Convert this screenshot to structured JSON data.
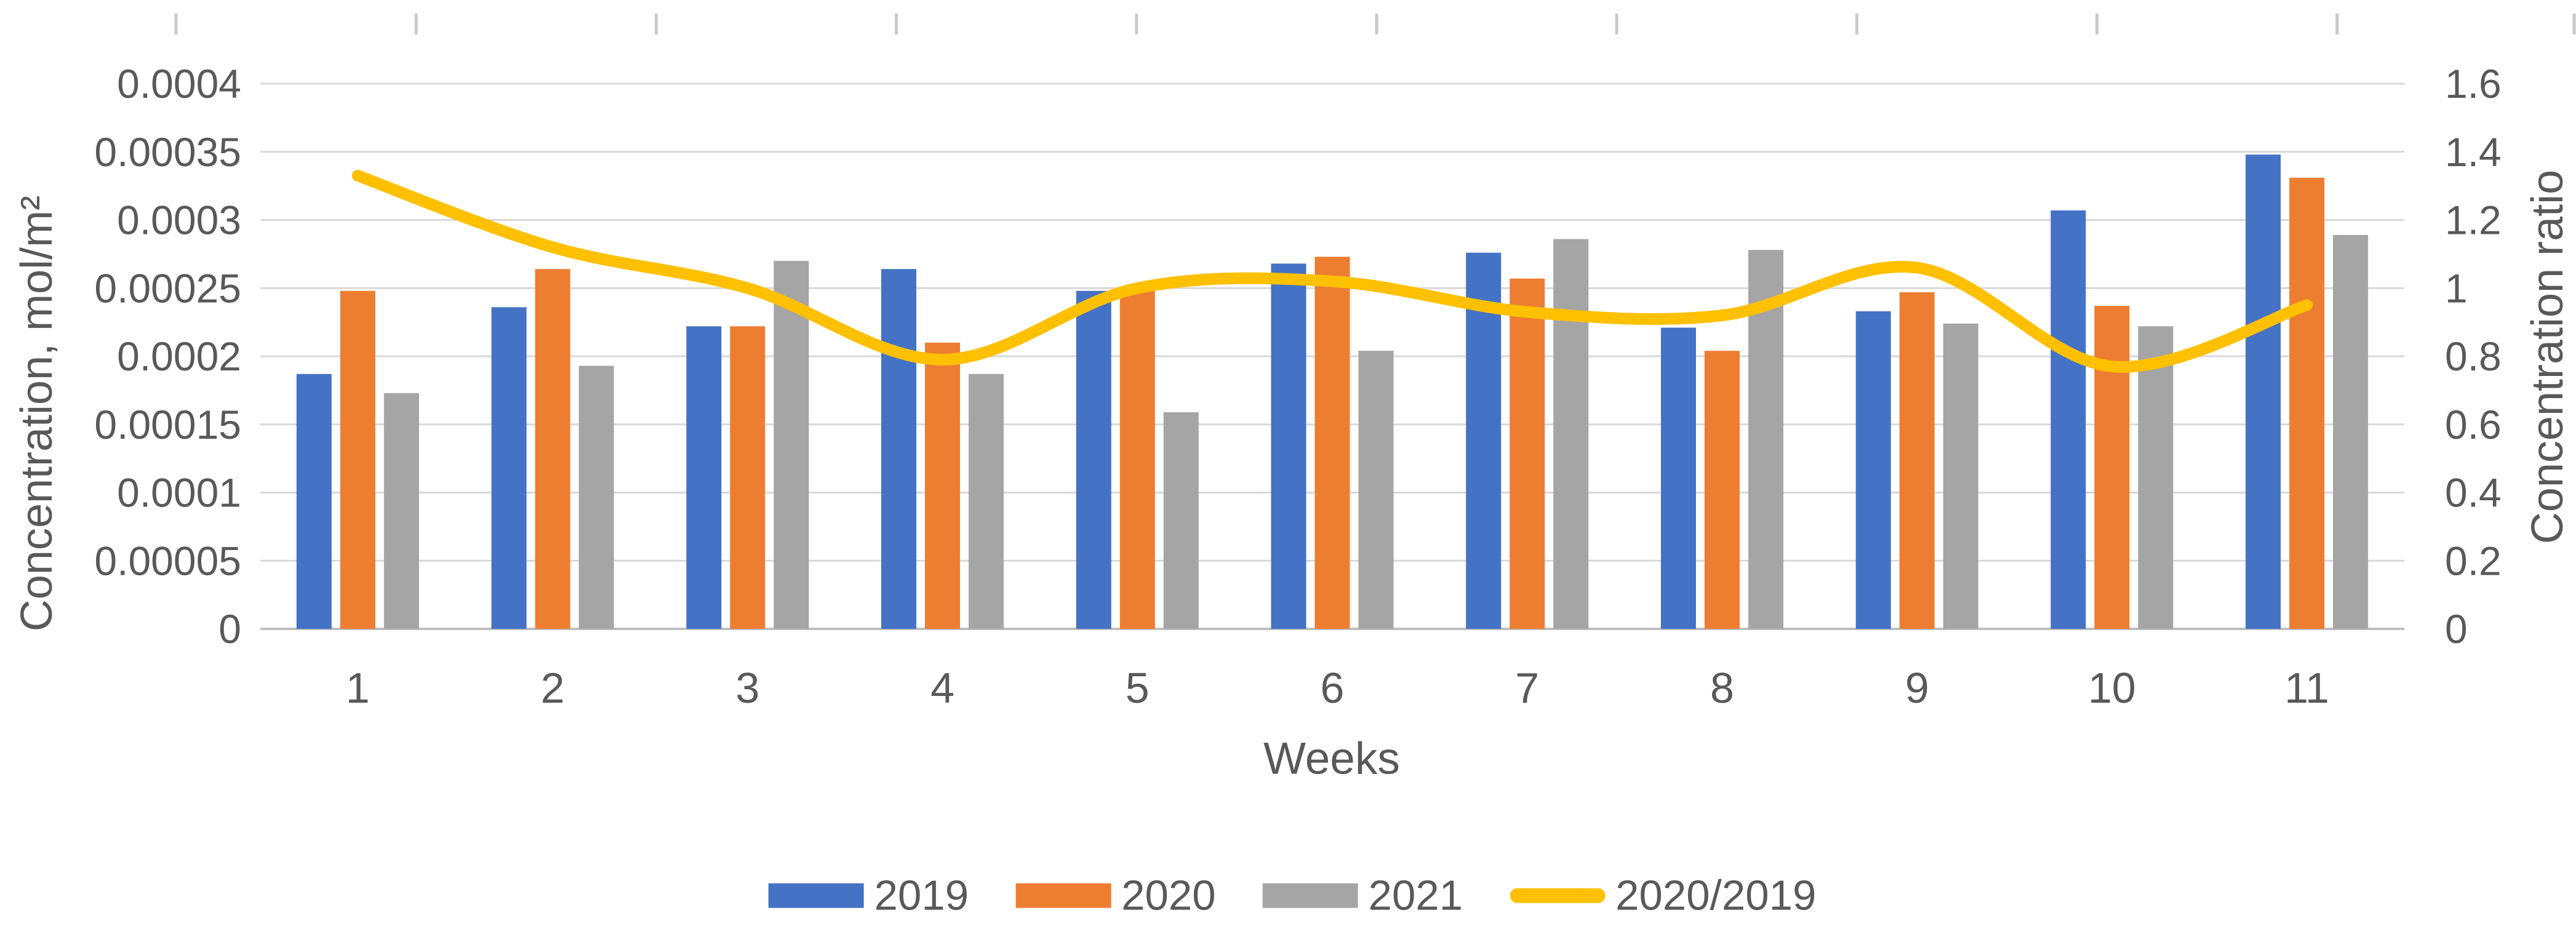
{
  "chart_data": {
    "type": "combo-bar-line",
    "title": "",
    "categories": [
      "1",
      "2",
      "3",
      "4",
      "5",
      "6",
      "7",
      "8",
      "9",
      "10",
      "11"
    ],
    "x_axis": {
      "title": "Weeks"
    },
    "left_axis": {
      "title": "Concentration, mol/m²",
      "min": 0,
      "max": 0.0004,
      "step": 5e-05,
      "tick_labels": [
        "0",
        "0.00005",
        "0.0001",
        "0.00015",
        "0.0002",
        "0.00025",
        "0.0003",
        "0.00035",
        "0.0004"
      ]
    },
    "right_axis": {
      "title": "Concentration ratio",
      "min": 0,
      "max": 1.6,
      "step": 0.2,
      "tick_labels": [
        "0",
        "0.2",
        "0.4",
        "0.6",
        "0.8",
        "1",
        "1.2",
        "1.4",
        "1.6"
      ]
    },
    "series": [
      {
        "name": "2019",
        "type": "bar",
        "axis": "left",
        "color": "#4472C4",
        "values": [
          0.000187,
          0.000236,
          0.000222,
          0.000264,
          0.000248,
          0.000268,
          0.000276,
          0.000221,
          0.000233,
          0.000307,
          0.000348
        ]
      },
      {
        "name": "2020",
        "type": "bar",
        "axis": "left",
        "color": "#ED7D31",
        "values": [
          0.000248,
          0.000264,
          0.000222,
          0.00021,
          0.000249,
          0.000273,
          0.000257,
          0.000204,
          0.000247,
          0.000237,
          0.000331
        ]
      },
      {
        "name": "2021",
        "type": "bar",
        "axis": "left",
        "color": "#A5A5A5",
        "values": [
          0.000173,
          0.000193,
          0.00027,
          0.000187,
          0.000159,
          0.000204,
          0.000286,
          0.000278,
          0.000224,
          0.000222,
          0.000289
        ]
      },
      {
        "name": "2020/2019",
        "type": "line",
        "axis": "right",
        "color": "#FFC000",
        "smooth": true,
        "values": [
          1.33,
          1.12,
          1.0,
          0.79,
          1.0,
          1.02,
          0.93,
          0.92,
          1.06,
          0.77,
          0.95
        ]
      }
    ],
    "legend_position": "bottom",
    "grid": true
  },
  "colors": {
    "gridline": "#D9D9D9",
    "axis_line": "#BFBFBF",
    "top_tick": "#C9C9C9",
    "text": "#595959",
    "background": "#FFFFFF"
  }
}
